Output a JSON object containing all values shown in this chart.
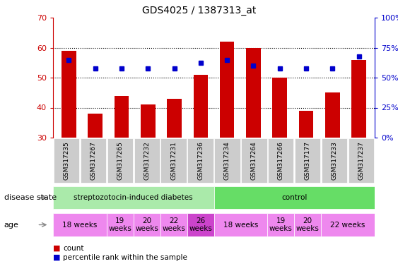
{
  "title": "GDS4025 / 1387313_at",
  "samples": [
    "GSM317235",
    "GSM317267",
    "GSM317265",
    "GSM317232",
    "GSM317231",
    "GSM317236",
    "GSM317234",
    "GSM317264",
    "GSM317266",
    "GSM317177",
    "GSM317233",
    "GSM317237"
  ],
  "bar_values": [
    59,
    38,
    44,
    41,
    43,
    51,
    62,
    60,
    50,
    39,
    45,
    56
  ],
  "dot_values": [
    56,
    53,
    53,
    53,
    53,
    55,
    56,
    54,
    53,
    53,
    53,
    57
  ],
  "ylim": [
    30,
    70
  ],
  "yticks": [
    30,
    40,
    50,
    60,
    70
  ],
  "right_yticks": [
    0,
    25,
    50,
    75,
    100
  ],
  "bar_color": "#cc0000",
  "dot_color": "#0000cc",
  "bar_bottom": 30,
  "disease_state_groups": [
    {
      "label": "streptozotocin-induced diabetes",
      "start": 0,
      "end": 6,
      "color": "#aaeaaa"
    },
    {
      "label": "control",
      "start": 6,
      "end": 12,
      "color": "#66dd66"
    }
  ],
  "age_groups": [
    {
      "label": "18 weeks",
      "start": 0,
      "end": 2,
      "color": "#ee88ee"
    },
    {
      "label": "19\nweeks",
      "start": 2,
      "end": 3,
      "color": "#ee88ee"
    },
    {
      "label": "20\nweeks",
      "start": 3,
      "end": 4,
      "color": "#ee88ee"
    },
    {
      "label": "22\nweeks",
      "start": 4,
      "end": 5,
      "color": "#ee88ee"
    },
    {
      "label": "26\nweeks",
      "start": 5,
      "end": 6,
      "color": "#cc44cc"
    },
    {
      "label": "18 weeks",
      "start": 6,
      "end": 8,
      "color": "#ee88ee"
    },
    {
      "label": "19\nweeks",
      "start": 8,
      "end": 9,
      "color": "#ee88ee"
    },
    {
      "label": "20\nweeks",
      "start": 9,
      "end": 10,
      "color": "#ee88ee"
    },
    {
      "label": "22 weeks",
      "start": 10,
      "end": 12,
      "color": "#ee88ee"
    }
  ],
  "bg_color": "#ffffff",
  "tick_color_left": "#cc0000",
  "tick_color_right": "#0000cc",
  "sample_bg_color": "#cccccc",
  "arrow_color": "#888888"
}
